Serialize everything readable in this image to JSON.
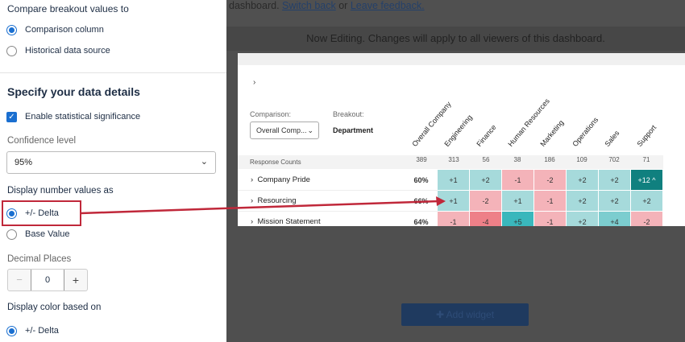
{
  "top_notice": {
    "prefix": "dashboard.",
    "switch_back": "Switch back",
    "or": "or",
    "leave_feedback": "Leave feedback."
  },
  "banner": "Now Editing. Changes will apply to all viewers of this dashboard.",
  "panel": {
    "compare_heading": "Compare breakout values to",
    "compare_options": [
      {
        "label": "Comparison column",
        "selected": true
      },
      {
        "label": "Historical data source",
        "selected": false
      }
    ],
    "details_heading": "Specify your data details",
    "stat_sig": {
      "label": "Enable statistical significance",
      "checked": true
    },
    "confidence_label": "Confidence level",
    "confidence_value": "95%",
    "display_values_label": "Display number values as",
    "display_options": [
      {
        "label": "+/- Delta",
        "selected": true
      },
      {
        "label": "Base Value",
        "selected": false
      }
    ],
    "decimal_label": "Decimal Places",
    "decimal_value": "0",
    "color_label": "Display color based on",
    "color_options": [
      {
        "label": "+/- Delta",
        "selected": true
      }
    ]
  },
  "widget": {
    "comparison_label": "Comparison:",
    "comparison_value": "Overall Comp...",
    "breakout_label": "Breakout:",
    "breakout_value": "Department",
    "columns": [
      "Overall Company",
      "Engineering",
      "Finance",
      "Human Resources",
      "Marketing",
      "Operations",
      "Sales",
      "Support"
    ],
    "counts_label": "Response Counts",
    "counts": [
      "389",
      "313",
      "56",
      "38",
      "186",
      "109",
      "702",
      "71"
    ],
    "rows": [
      {
        "label": "Company Pride",
        "overall": "60%",
        "values": [
          "+1",
          "+2",
          "-1",
          "-2",
          "+2",
          "+2",
          "+12 ^"
        ],
        "colors": [
          "#a6dadb",
          "#a6dadb",
          "#f4b3b9",
          "#f4b3b9",
          "#a6dadb",
          "#a6dadb",
          "#10807f"
        ]
      },
      {
        "label": "Resourcing",
        "overall": "66%",
        "values": [
          "+1",
          "-2",
          "+1",
          "-1",
          "+2",
          "+2",
          "+2"
        ],
        "colors": [
          "#a6dadb",
          "#f4b3b9",
          "#a6dadb",
          "#f4b3b9",
          "#a6dadb",
          "#a6dadb",
          "#a6dadb"
        ]
      },
      {
        "label": "Mission Statement",
        "overall": "64%",
        "values": [
          "-1",
          "-4",
          "+5",
          "-1",
          "+2",
          "+4",
          "-2"
        ],
        "colors": [
          "#f4b3b9",
          "#ee8088",
          "#3ab7bc",
          "#f4b3b9",
          "#a6dadb",
          "#7ccdcf",
          "#f4b3b9"
        ]
      }
    ]
  },
  "add_widget": "Add widget",
  "accent_color": "#1a6fd0",
  "annotation_color": "#c0283a"
}
